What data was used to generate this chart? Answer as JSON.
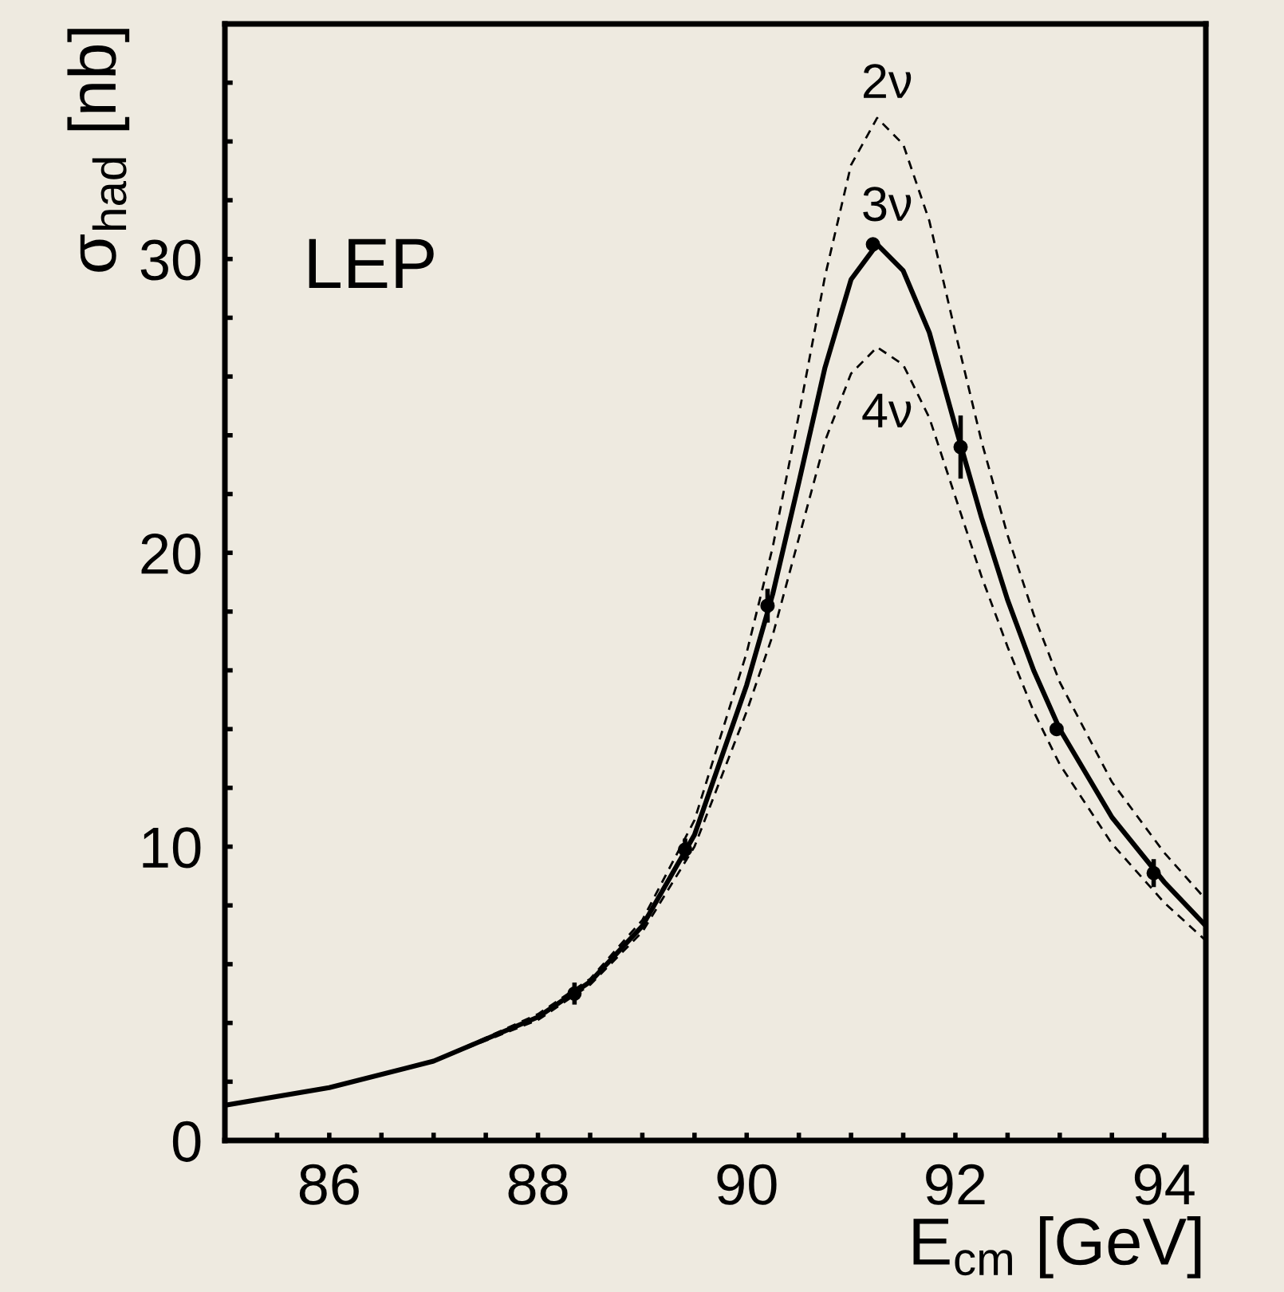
{
  "chart_data": {
    "type": "line",
    "xlabel": "E$_{cm}$ [GeV]",
    "ylabel": "σ$_{had}$ [nb]",
    "xlim": [
      85,
      94.4
    ],
    "ylim": [
      0,
      38
    ],
    "xticks": [
      {
        "value": 85.5,
        "label": null
      },
      86,
      {
        "value": 86.5,
        "label": null
      },
      {
        "value": 87,
        "label": null
      },
      {
        "value": 87.5,
        "label": null
      },
      88,
      {
        "value": 88.5,
        "label": null
      },
      {
        "value": 89,
        "label": null
      },
      {
        "value": 89.5,
        "label": null
      },
      90,
      {
        "value": 90.5,
        "label": null
      },
      {
        "value": 91,
        "label": null
      },
      {
        "value": 91.5,
        "label": null
      },
      92,
      {
        "value": 92.5,
        "label": null
      },
      {
        "value": 93,
        "label": null
      },
      {
        "value": 93.5,
        "label": null
      },
      94
    ],
    "yticks": [
      0,
      {
        "value": 2,
        "label": null
      },
      {
        "value": 4,
        "label": null
      },
      {
        "value": 6,
        "label": null
      },
      {
        "value": 8,
        "label": null
      },
      10,
      {
        "value": 12,
        "label": null
      },
      {
        "value": 14,
        "label": null
      },
      {
        "value": 16,
        "label": null
      },
      {
        "value": 18,
        "label": null
      },
      20,
      {
        "value": 22,
        "label": null
      },
      {
        "value": 24,
        "label": null
      },
      {
        "value": 26,
        "label": null
      },
      {
        "value": 28,
        "label": null
      },
      30,
      {
        "value": 32,
        "label": null
      },
      {
        "value": 34,
        "label": null
      },
      {
        "value": 36,
        "label": null
      }
    ],
    "grid": false,
    "legend": false,
    "series": [
      {
        "line_style": "dashed",
        "color": "#000000",
        "x": [
          85,
          86,
          87,
          88,
          88.5,
          89,
          89.5,
          90,
          90.25,
          90.5,
          90.75,
          91,
          91.25,
          91.5,
          91.75,
          92,
          92.25,
          92.5,
          92.75,
          93,
          93.5,
          94,
          94.4
        ],
        "values": [
          1.2,
          1.8,
          2.7,
          4.3,
          5.5,
          7.5,
          10.9,
          16.6,
          20.2,
          24.7,
          29.4,
          33.2,
          34.8,
          33.9,
          31.3,
          27.5,
          23.8,
          20.6,
          17.9,
          15.6,
          12.2,
          9.8,
          8.2
        ]
      },
      {
        "line_style": "dashed",
        "color": "#000000",
        "x": [
          85,
          86,
          87,
          88,
          88.5,
          89,
          89.5,
          90,
          90.25,
          90.5,
          90.75,
          91,
          91.25,
          91.5,
          91.75,
          92,
          92.25,
          92.5,
          92.75,
          93,
          93.5,
          94,
          94.4
        ],
        "values": [
          1.2,
          1.8,
          2.7,
          4.1,
          5.3,
          7.1,
          10.0,
          14.6,
          17.2,
          20.5,
          23.8,
          26.1,
          27.0,
          26.4,
          24.6,
          21.9,
          19.2,
          16.8,
          14.6,
          12.8,
          10.1,
          8.1,
          6.8
        ]
      },
      {
        "line_style": "solid",
        "color": "#000000",
        "x": [
          85,
          86,
          87,
          88,
          88.5,
          89,
          89.5,
          90,
          90.25,
          90.5,
          90.75,
          91,
          91.25,
          91.5,
          91.75,
          92,
          92.25,
          92.5,
          92.75,
          93,
          93.5,
          94,
          94.4
        ],
        "values": [
          1.2,
          1.8,
          2.7,
          4.2,
          5.4,
          7.3,
          10.4,
          15.5,
          18.6,
          22.4,
          26.3,
          29.3,
          30.5,
          29.6,
          27.5,
          24.3,
          21.2,
          18.4,
          16.0,
          14.0,
          11.0,
          8.8,
          7.3
        ]
      },
      {
        "type": "scatter",
        "marker": "circle",
        "color": "#000000",
        "x": [
          88.35,
          89.41,
          90.2,
          91.21,
          92.05,
          92.97,
          93.9
        ],
        "values": [
          5.0,
          9.9,
          18.2,
          30.5,
          23.6,
          14.0,
          9.1
        ],
        "errors": [
          0.3,
          0.3,
          0.5,
          null,
          1.0,
          null,
          0.4
        ]
      }
    ],
    "annotations": [
      "LEP",
      "2ν",
      "3ν",
      "4ν"
    ]
  }
}
